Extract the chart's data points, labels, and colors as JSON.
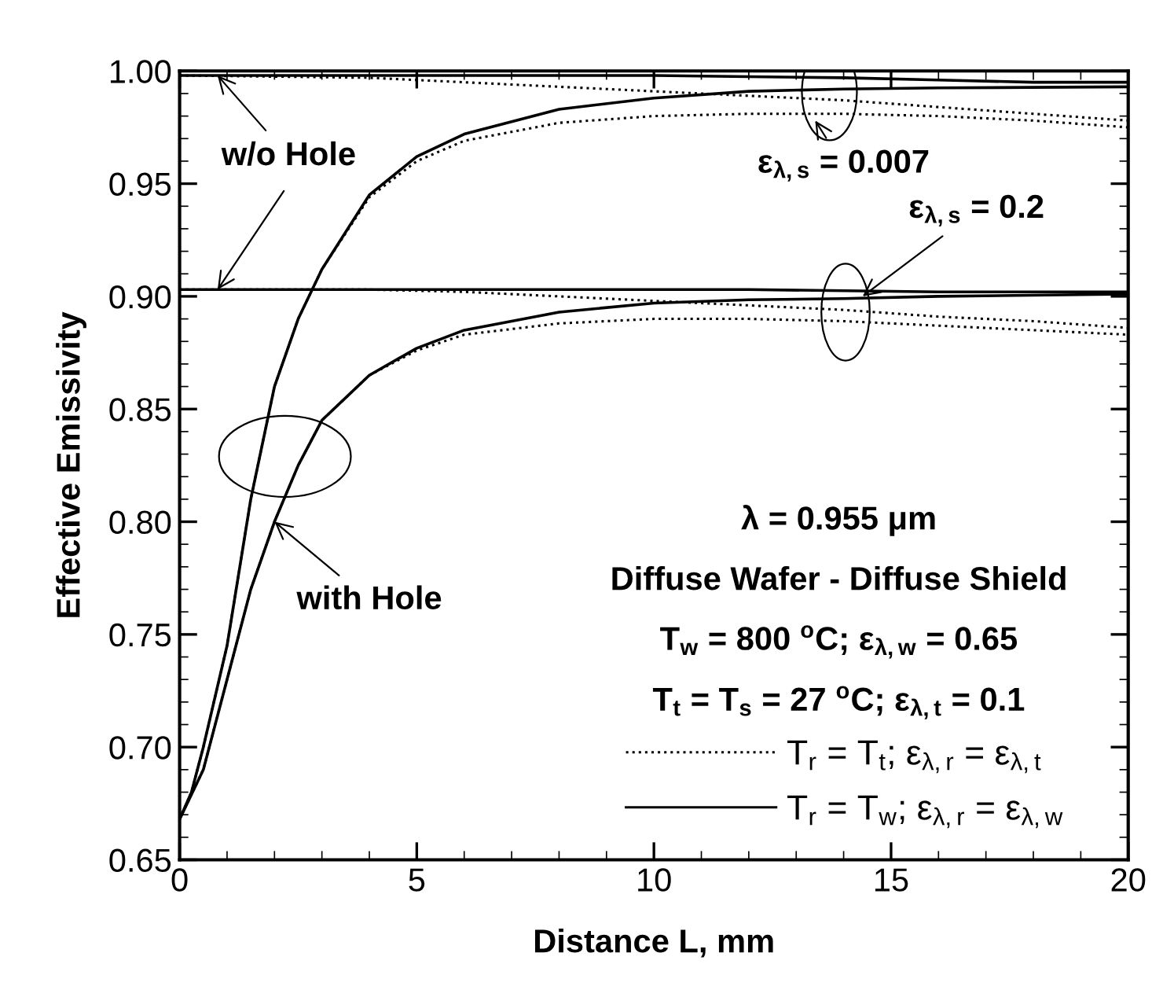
{
  "chart_data": {
    "type": "line",
    "xlabel": "Distance L, mm",
    "ylabel": "Effective Emissivity",
    "xlim": [
      0,
      20
    ],
    "ylim": [
      0.65,
      1.0
    ],
    "xticks": [
      0,
      5,
      10,
      15,
      20
    ],
    "yticks": [
      0.65,
      {
        "value": 0.7,
        "label": "0.70"
      },
      0.75,
      {
        "value": 0.8,
        "label": "0.80"
      },
      0.85,
      {
        "value": 0.9,
        "label": "0.90"
      },
      0.95,
      {
        "value": 1.0,
        "label": "1.00"
      }
    ],
    "grid": false,
    "legend": "bottom right",
    "marker": "none",
    "series": [
      {
        "color": "#000000",
        "line_style": "solid",
        "x": [
          0,
          4,
          8,
          10,
          12,
          14,
          16,
          18,
          20
        ],
        "values": [
          0.998,
          0.998,
          0.998,
          0.998,
          0.9975,
          0.997,
          0.996,
          0.995,
          0.995
        ]
      },
      {
        "color": "#000000",
        "line_style": "dotted",
        "x": [
          0,
          4,
          8,
          10,
          12,
          14,
          16,
          18,
          20
        ],
        "values": [
          0.998,
          0.997,
          0.993,
          0.991,
          0.989,
          0.987,
          0.984,
          0.981,
          0.978
        ]
      },
      {
        "color": "#000000",
        "line_style": "solid",
        "x": [
          0,
          0.25,
          0.5,
          1,
          1.5,
          2,
          2.5,
          3,
          4,
          5,
          6,
          8,
          10,
          12,
          14,
          16,
          20
        ],
        "values": [
          0.668,
          0.68,
          0.7,
          0.745,
          0.81,
          0.86,
          0.89,
          0.912,
          0.945,
          0.962,
          0.972,
          0.983,
          0.988,
          0.991,
          0.992,
          0.9925,
          0.993
        ]
      },
      {
        "color": "#000000",
        "line_style": "dotted",
        "x": [
          0,
          0.25,
          0.5,
          1,
          1.5,
          2,
          2.5,
          3,
          4,
          5,
          6,
          8,
          10,
          12,
          14,
          16,
          18,
          20
        ],
        "values": [
          0.668,
          0.68,
          0.7,
          0.745,
          0.81,
          0.86,
          0.89,
          0.912,
          0.944,
          0.96,
          0.969,
          0.977,
          0.98,
          0.981,
          0.981,
          0.98,
          0.978,
          0.975
        ]
      },
      {
        "color": "#000000",
        "line_style": "solid",
        "x": [
          0,
          4,
          8,
          12,
          16,
          20
        ],
        "values": [
          0.903,
          0.903,
          0.903,
          0.903,
          0.902,
          0.902
        ]
      },
      {
        "color": "#000000",
        "line_style": "dotted",
        "x": [
          0,
          4,
          6,
          8,
          10,
          12,
          14,
          16,
          18,
          20
        ],
        "values": [
          0.903,
          0.903,
          0.902,
          0.9,
          0.898,
          0.896,
          0.894,
          0.891,
          0.889,
          0.886
        ]
      },
      {
        "name": "T$_{r}$ = T$_{w}$; ε$_{λ,r}$ = ε$_{λ,w}$",
        "color": "#000000",
        "line_style": "solid",
        "x": [
          0,
          0.5,
          1,
          1.5,
          2,
          2.5,
          3,
          4,
          5,
          6,
          8,
          10,
          12,
          14,
          16,
          20
        ],
        "values": [
          0.668,
          0.69,
          0.73,
          0.77,
          0.8,
          0.825,
          0.845,
          0.865,
          0.877,
          0.885,
          0.893,
          0.897,
          0.8985,
          0.899,
          0.9,
          0.901
        ]
      },
      {
        "name": "T$_{r}$ = T$_{t}$; ε$_{λ,r}$ = ε$_{λ,t}$",
        "color": "#000000",
        "line_style": "dotted",
        "x": [
          0,
          0.5,
          1,
          1.5,
          2,
          2.5,
          3,
          4,
          5,
          6,
          8,
          10,
          12,
          14,
          16,
          18,
          20
        ],
        "values": [
          0.668,
          0.69,
          0.73,
          0.77,
          0.8,
          0.825,
          0.845,
          0.865,
          0.876,
          0.883,
          0.888,
          0.89,
          0.89,
          0.889,
          0.887,
          0.885,
          0.883
        ]
      }
    ],
    "annotations": [
      {
        "text": "w/o Hole",
        "x": 0.8,
        "y": 0.998
      },
      {
        "text": "with Hole",
        "x": 2.0,
        "y": 0.8
      },
      {
        "text": "ε$_{λ,s}$ = 0.007",
        "x": 13.4,
        "y": 0.978
      },
      {
        "text": "ε$_{λ,s}$ = 0.2",
        "x": 14.4,
        "y": 0.9
      },
      "λ = 0.955 μm",
      "Diffuse Wafer - Diffuse Shield",
      "T$_{w}$ = 800 $^{o}$C; ε$_{λ,w}$ = 0.65",
      "T$_{t}$ = T$_{s}$ = 27 $^{o}$C; ε$_{λ,t}$ = 0.1"
    ]
  }
}
